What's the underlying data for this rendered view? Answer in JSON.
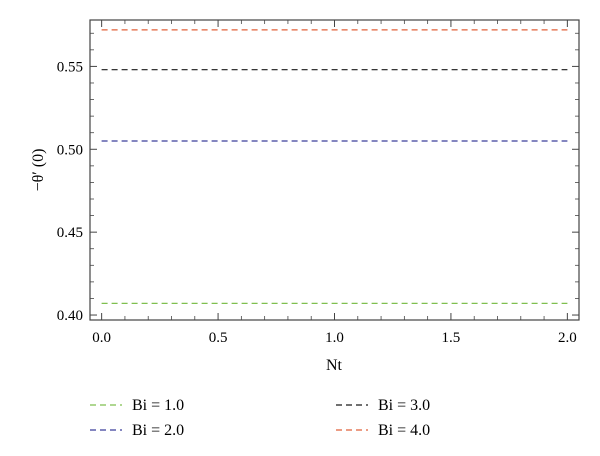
{
  "chart_data": {
    "type": "line",
    "xlabel": "Nt",
    "ylabel": "−θ′ (0)",
    "xlim": [
      -0.05,
      2.05
    ],
    "ylim": [
      0.397,
      0.578
    ],
    "x_ticks": [
      0.0,
      0.5,
      1.0,
      1.5,
      2.0
    ],
    "x_tick_labels": [
      "0.0",
      "0.5",
      "1.0",
      "1.5",
      "2.0"
    ],
    "y_ticks": [
      0.4,
      0.45,
      0.5,
      0.55
    ],
    "y_tick_labels": [
      "0.40",
      "0.45",
      "0.50",
      "0.55"
    ],
    "grid": false,
    "legend_position": "bottom",
    "series": [
      {
        "name": "Bi = 1.0",
        "color": "#7fbf4f",
        "x": [
          0.0,
          2.0
        ],
        "values": [
          0.407,
          0.407
        ]
      },
      {
        "name": "Bi = 2.0",
        "color": "#3a3f9a",
        "x": [
          0.0,
          2.0
        ],
        "values": [
          0.505,
          0.505
        ]
      },
      {
        "name": "Bi = 3.0",
        "color": "#1a1a1a",
        "x": [
          0.0,
          2.0
        ],
        "values": [
          0.548,
          0.548
        ]
      },
      {
        "name": "Bi = 4.0",
        "color": "#e0603a",
        "x": [
          0.0,
          2.0
        ],
        "values": [
          0.572,
          0.572
        ]
      }
    ]
  }
}
